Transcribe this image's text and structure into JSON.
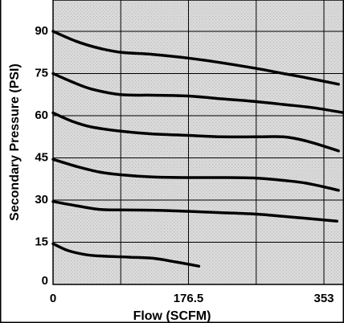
{
  "chart_data": {
    "type": "line",
    "title": "",
    "xlabel": "Flow (SCFM)",
    "ylabel": "Secondary Pressure (PSI)",
    "xlim": [
      0,
      395
    ],
    "ylim": [
      0,
      100
    ],
    "x_ticks": [
      "0",
      "176.5",
      "353"
    ],
    "x_tick_values": [
      0,
      176.5,
      353
    ],
    "y_ticks": [
      "0",
      "15",
      "30",
      "45",
      "60",
      "75",
      "90"
    ],
    "y_tick_values": [
      0,
      15,
      30,
      45,
      60,
      75,
      90
    ],
    "x_gridlines": [
      0,
      88.25,
      176.5,
      264.75,
      353
    ],
    "y_gridlines": [
      0,
      15,
      30,
      45,
      60,
      75,
      90
    ],
    "grid": true,
    "legend": "none",
    "colors": {
      "line": "#000000",
      "plot_background": "#d8d8d8",
      "background": "#ffffff"
    },
    "series": [
      {
        "points": [
          [
            0,
            90
          ],
          [
            30,
            86.5
          ],
          [
            60,
            84
          ],
          [
            90,
            82.5
          ],
          [
            130,
            81.8
          ],
          [
            176,
            80.5
          ],
          [
            220,
            78.8
          ],
          [
            265,
            76.8
          ],
          [
            300,
            75
          ],
          [
            330,
            73.5
          ],
          [
            372,
            71.2
          ]
        ]
      },
      {
        "points": [
          [
            0,
            75
          ],
          [
            25,
            72
          ],
          [
            50,
            69.5
          ],
          [
            88,
            67.5
          ],
          [
            130,
            67.3
          ],
          [
            176,
            67
          ],
          [
            220,
            66
          ],
          [
            265,
            65
          ],
          [
            300,
            64
          ],
          [
            340,
            62.8
          ],
          [
            384,
            60.8
          ]
        ]
      },
      {
        "points": [
          [
            0,
            61
          ],
          [
            25,
            58
          ],
          [
            50,
            56
          ],
          [
            88,
            54.5
          ],
          [
            130,
            53.5
          ],
          [
            176,
            53
          ],
          [
            220,
            52.5
          ],
          [
            265,
            52.5
          ],
          [
            300,
            52.5
          ],
          [
            330,
            51
          ],
          [
            372,
            47.5
          ]
        ]
      },
      {
        "points": [
          [
            0,
            44.5
          ],
          [
            30,
            42
          ],
          [
            60,
            40
          ],
          [
            88,
            39
          ],
          [
            130,
            38.2
          ],
          [
            176,
            38
          ],
          [
            220,
            38
          ],
          [
            265,
            37.8
          ],
          [
            300,
            37
          ],
          [
            330,
            36
          ],
          [
            372,
            33.5
          ]
        ]
      },
      {
        "points": [
          [
            0,
            29.5
          ],
          [
            30,
            28
          ],
          [
            60,
            26.7
          ],
          [
            88,
            26.5
          ],
          [
            130,
            26.4
          ],
          [
            176,
            26
          ],
          [
            220,
            25.5
          ],
          [
            265,
            25
          ],
          [
            300,
            24.2
          ],
          [
            330,
            23.5
          ],
          [
            370,
            22.5
          ]
        ]
      },
      {
        "points": [
          [
            0,
            14.5
          ],
          [
            20,
            12
          ],
          [
            45,
            10.5
          ],
          [
            70,
            10
          ],
          [
            100,
            9.7
          ],
          [
            130,
            9.3
          ],
          [
            160,
            8
          ],
          [
            190,
            6.5
          ]
        ]
      }
    ]
  }
}
